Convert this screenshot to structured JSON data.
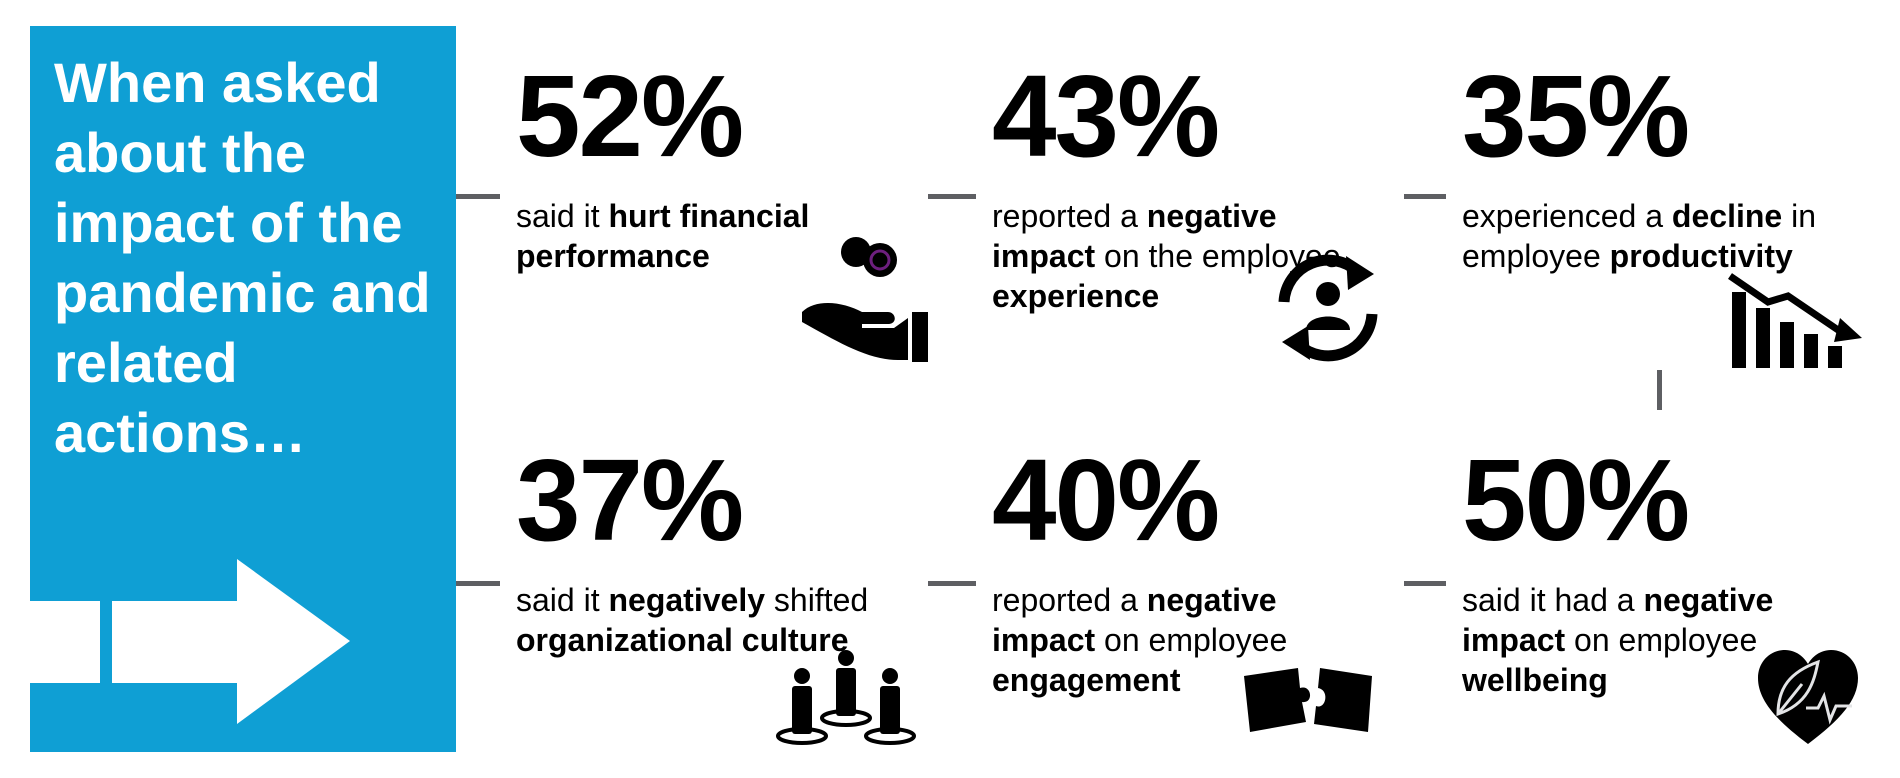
{
  "intro": {
    "heading": "When asked about the impact of the pandemic and related actions…"
  },
  "colors": {
    "intro_blue": "#0f9fd4",
    "purple": "#6d1f7e",
    "grey": "#e3e4e6",
    "connector": "#5e5f63"
  },
  "cards": [
    {
      "percent": "52%",
      "parts": [
        {
          "t": "said it "
        },
        {
          "b": "hurt financial performance"
        }
      ],
      "style": "purple",
      "icon": "hand-coins-icon"
    },
    {
      "percent": "43%",
      "parts": [
        {
          "t": "reported a "
        },
        {
          "b": "negative impact"
        },
        {
          "t": " on the employee "
        },
        {
          "b": "experience"
        }
      ],
      "style": "grey",
      "icon": "person-cycle-icon"
    },
    {
      "percent": "35%",
      "parts": [
        {
          "t": "experienced a "
        },
        {
          "b": "decline"
        },
        {
          "t": " in employee "
        },
        {
          "b": "productivity"
        }
      ],
      "style": "purple",
      "icon": "declining-bar-chart-icon"
    },
    {
      "percent": "37%",
      "parts": [
        {
          "t": "said it "
        },
        {
          "b": "negatively"
        },
        {
          "t": " shifted "
        },
        {
          "b": "organizational culture"
        }
      ],
      "style": "grey",
      "icon": "people-group-icon"
    },
    {
      "percent": "40%",
      "parts": [
        {
          "t": "reported a "
        },
        {
          "b": "negative impact"
        },
        {
          "t": " on employee "
        },
        {
          "b": "engagement"
        }
      ],
      "style": "purple",
      "icon": "puzzle-pieces-icon"
    },
    {
      "percent": "50%",
      "parts": [
        {
          "t": "said it had a "
        },
        {
          "b": "negative impact"
        },
        {
          "t": " on employee "
        },
        {
          "b": "wellbeing"
        }
      ],
      "style": "grey",
      "icon": "heart-leaf-icon"
    }
  ]
}
